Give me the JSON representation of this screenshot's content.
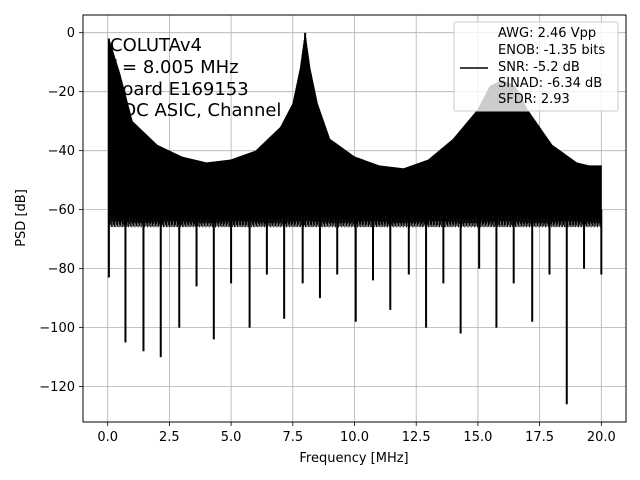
{
  "chart_data": {
    "type": "line",
    "xlabel": "Frequency [MHz]",
    "ylabel": "PSD [dB]",
    "xlim": [
      -1.0,
      21.0
    ],
    "ylim": [
      -132,
      6
    ],
    "grid": true,
    "x_ticks": [
      0.0,
      2.5,
      5.0,
      7.5,
      10.0,
      12.5,
      15.0,
      17.5,
      20.0
    ],
    "x_tick_labels": [
      "0.0",
      "2.5",
      "5.0",
      "7.5",
      "10.0",
      "12.5",
      "15.0",
      "17.5",
      "20.0"
    ],
    "y_ticks": [
      0,
      -20,
      -40,
      -60,
      -80,
      -100,
      -120
    ],
    "y_tick_labels": [
      "0",
      "−20",
      "−40",
      "−60",
      "−80",
      "−100",
      "−120"
    ],
    "annotation_lines": [
      "COLUTAv4",
      "f = 8.005 MHz",
      "Board E169153",
      "ADC ASIC, Channel"
    ],
    "legend": {
      "placement": "upper right",
      "lines": [
        "AWG: 2.46 Vpp",
        "ENOB: -1.35 bits",
        "SNR: -5.2 dB",
        "SINAD: -6.34 dB",
        "SFDR: 2.93"
      ]
    },
    "series": [
      {
        "style": "dense spectrum (upper envelope / lower spikes)",
        "color": "#000000",
        "upper_envelope": {
          "x": [
            0.0,
            0.05,
            0.5,
            1.0,
            2.0,
            3.0,
            4.0,
            5.0,
            6.0,
            7.0,
            7.5,
            7.8,
            8.0,
            8.2,
            8.5,
            9.0,
            10.0,
            11.0,
            12.0,
            13.0,
            14.0,
            15.0,
            15.5,
            16.0,
            16.5,
            17.0,
            18.0,
            19.0,
            19.5,
            20.0
          ],
          "y": [
            -5,
            -2,
            -14,
            -30,
            -38,
            -42,
            -44,
            -43,
            -40,
            -32,
            -24,
            -12,
            0,
            -12,
            -24,
            -36,
            -42,
            -45,
            -46,
            -43,
            -36,
            -26,
            -18,
            -16,
            -18,
            -26,
            -38,
            -44,
            -45,
            -45
          ]
        },
        "lower_spikes": {
          "x": [
            0.05,
            0.72,
            1.45,
            2.15,
            2.9,
            3.6,
            4.3,
            5.0,
            5.75,
            6.45,
            7.15,
            7.9,
            8.6,
            9.3,
            10.05,
            10.75,
            11.45,
            12.2,
            12.9,
            13.6,
            14.3,
            15.05,
            15.75,
            16.45,
            17.2,
            17.9,
            18.6,
            19.3,
            20.0
          ],
          "y": [
            -83,
            -105,
            -108,
            -110,
            -100,
            -86,
            -104,
            -85,
            -100,
            -82,
            -97,
            -85,
            -90,
            -82,
            -98,
            -84,
            -94,
            -82,
            -100,
            -85,
            -102,
            -80,
            -100,
            -85,
            -98,
            -82,
            -126,
            -80,
            -82
          ]
        }
      }
    ]
  }
}
